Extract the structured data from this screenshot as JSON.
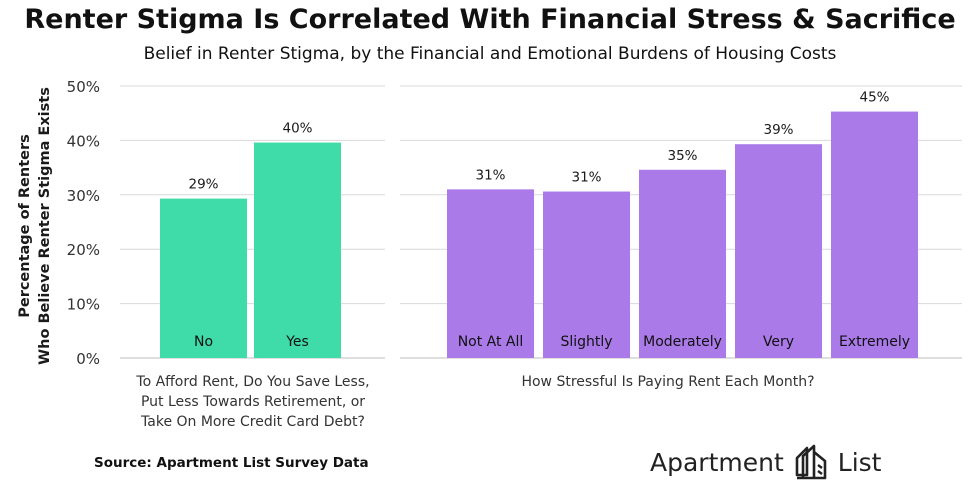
{
  "title": "Renter Stigma Is Correlated With Financial Stress & Sacrifice",
  "subtitle": "Belief in Renter Stigma, by the Financial and Emotional Burdens of Housing Costs",
  "source": "Source: Apartment List Survey Data",
  "brand": {
    "word1": "Apartment",
    "word2": "List",
    "logo_icon": "building-outline-logo"
  },
  "colors": {
    "left_bars": "#3fdba8",
    "right_bars": "#a97ae8",
    "grid": "#d9d9d9",
    "text": "#1a1a1a"
  },
  "chart_data": [
    {
      "type": "bar",
      "xlabel": "To Afford Rent, Do You Save Less, Put Less Towards Retirement, or Take On More Credit Card Debt?",
      "xlabel_lines": [
        "To Afford Rent, Do You Save Less,",
        "Put Less Towards Retirement, or",
        "Take On More Credit Card Debt?"
      ],
      "ylabel": "Percentage of Renters Who Believe Renter Stigma Exists",
      "ylabel_lines": [
        "Percentage of Renters",
        "Who Believe Renter Stigma Exists"
      ],
      "ylim": [
        0,
        50
      ],
      "yticks": [
        "0%",
        "10%",
        "20%",
        "30%",
        "40%",
        "50%"
      ],
      "grid": true,
      "categories": [
        "No",
        "Yes"
      ],
      "values": [
        29.3,
        39.6
      ],
      "data_labels": [
        "29%",
        "40%"
      ],
      "color": "#3fdba8"
    },
    {
      "type": "bar",
      "xlabel": "How Stressful Is Paying Rent Each Month?",
      "ylim": [
        0,
        50
      ],
      "grid": true,
      "categories": [
        "Not At All",
        "Slightly",
        "Moderately",
        "Very",
        "Extremely"
      ],
      "values": [
        31.0,
        30.6,
        34.6,
        39.3,
        45.3
      ],
      "data_labels": [
        "31%",
        "31%",
        "35%",
        "39%",
        "45%"
      ],
      "color": "#a97ae8"
    }
  ]
}
